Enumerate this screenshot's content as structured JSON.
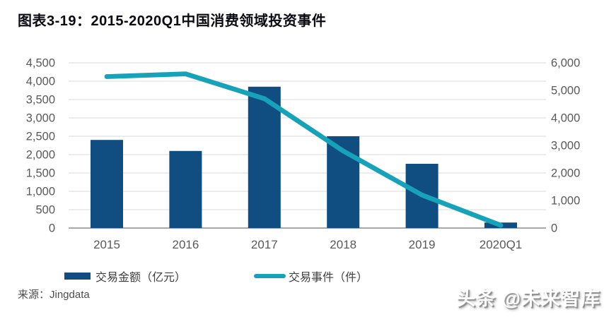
{
  "title": "图表3-19：2015-2020Q1中国消费领域投资事件",
  "source": "来源：Jingdata",
  "watermark": "头条 @未来智库",
  "colors": {
    "bar": "#104d80",
    "line": "#16a2b8",
    "grid": "#d8d8d8",
    "axis_line": "#9b9b9b",
    "tick_label": "#595959",
    "legend_text": "#3f3f3f",
    "title_text": "#0a0a12"
  },
  "legend": {
    "items": [
      {
        "label": "交易金额（亿元）",
        "swatch": "bar-swatch"
      },
      {
        "label": "交易事件（件）",
        "swatch": "line-swatch"
      }
    ]
  },
  "chart_data": {
    "type": "bar",
    "subtype": "combo bar + line, dual axis",
    "title": "2015-2020Q1中国消费领域投资事件",
    "categories": [
      "2015",
      "2016",
      "2017",
      "2018",
      "2019",
      "2020Q1"
    ],
    "series": [
      {
        "name": "交易金额（亿元）",
        "type": "bar",
        "axis": "left",
        "values": [
          2400,
          2100,
          3850,
          2500,
          1750,
          150
        ]
      },
      {
        "name": "交易事件（件）",
        "type": "line",
        "axis": "right",
        "values": [
          5500,
          5600,
          4700,
          2800,
          1200,
          100
        ]
      }
    ],
    "left_axis": {
      "min": 0,
      "max": 4500,
      "step": 500,
      "tick_labels": [
        "0",
        "500",
        "1,000",
        "1,500",
        "2,000",
        "2,500",
        "3,000",
        "3,500",
        "4,000",
        "4,500"
      ]
    },
    "right_axis": {
      "min": 0,
      "max": 6000,
      "step": 1000,
      "tick_labels": [
        "0",
        "1,000",
        "2,000",
        "3,000",
        "4,000",
        "5,000",
        "6,000"
      ]
    },
    "grid": true,
    "legend_position": "bottom"
  }
}
